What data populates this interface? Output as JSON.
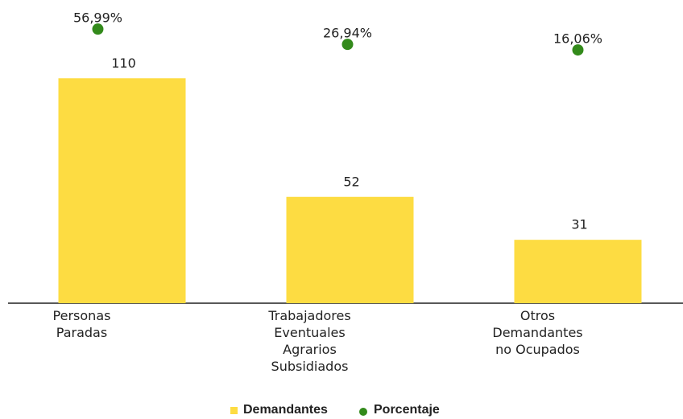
{
  "chart_data": {
    "type": "bar_dot",
    "categories": [
      "Personas\nParadas",
      "Trabajadores\nEventuales\nAgrarios\nSubsidiados",
      "Otros\nDemandantes\nno Ocupados"
    ],
    "series": [
      {
        "name": "Demandantes",
        "color": "#fddc42",
        "values": [
          110,
          52,
          31
        ]
      },
      {
        "name": "Porcentaje",
        "color": "#338a1b",
        "axis": "y2",
        "values": [
          56.99,
          26.94,
          16.06
        ],
        "value_labels": [
          "56,99%",
          "26,94%",
          "16,06%"
        ]
      }
    ],
    "ylim": [
      0,
      140
    ],
    "y2lim": [
      -482,
      81
    ],
    "legend": "bottom"
  }
}
